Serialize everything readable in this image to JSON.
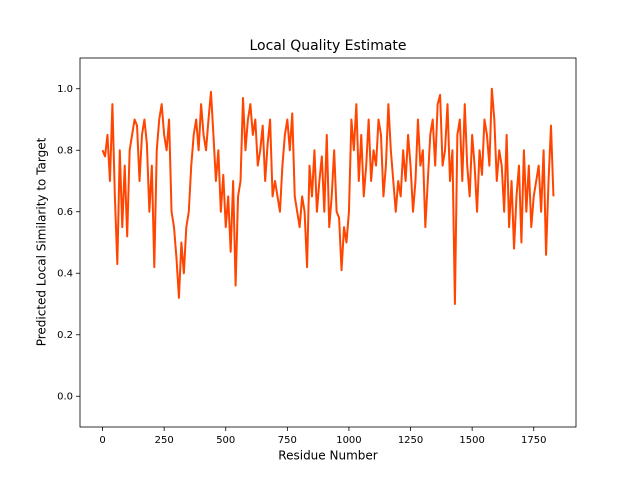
{
  "chart_data": {
    "type": "line",
    "title": "Local Quality Estimate",
    "xlabel": "Residue Number",
    "ylabel": "Predicted Local Similarity to Target",
    "color": "#ff4500",
    "xlim": [
      -91.5,
      1921.5
    ],
    "ylim": [
      -0.1,
      1.1
    ],
    "xticks": [
      0,
      250,
      500,
      750,
      1000,
      1250,
      1500,
      1750
    ],
    "yticks": [
      {
        "value": 0,
        "label": "0.0"
      },
      0.2,
      0.4,
      0.6,
      0.8,
      {
        "value": 1,
        "label": "1.0"
      }
    ],
    "x": [
      0,
      10,
      20,
      30,
      40,
      50,
      60,
      70,
      80,
      90,
      100,
      110,
      120,
      130,
      140,
      150,
      160,
      170,
      180,
      190,
      200,
      210,
      220,
      230,
      240,
      250,
      260,
      270,
      280,
      290,
      300,
      310,
      320,
      330,
      340,
      350,
      360,
      370,
      380,
      390,
      400,
      410,
      420,
      430,
      440,
      450,
      460,
      470,
      480,
      490,
      500,
      510,
      520,
      530,
      540,
      550,
      560,
      570,
      580,
      590,
      600,
      610,
      620,
      630,
      640,
      650,
      660,
      670,
      680,
      690,
      700,
      710,
      720,
      730,
      740,
      750,
      760,
      770,
      780,
      790,
      800,
      810,
      820,
      830,
      840,
      850,
      860,
      870,
      880,
      890,
      900,
      910,
      920,
      930,
      940,
      950,
      960,
      970,
      980,
      990,
      1000,
      1010,
      1020,
      1030,
      1040,
      1050,
      1060,
      1070,
      1080,
      1090,
      1100,
      1110,
      1120,
      1130,
      1140,
      1150,
      1160,
      1170,
      1180,
      1190,
      1200,
      1210,
      1220,
      1230,
      1240,
      1250,
      1260,
      1270,
      1280,
      1290,
      1300,
      1310,
      1320,
      1330,
      1340,
      1350,
      1360,
      1370,
      1380,
      1390,
      1400,
      1410,
      1420,
      1430,
      1440,
      1450,
      1460,
      1470,
      1480,
      1490,
      1500,
      1510,
      1520,
      1530,
      1540,
      1550,
      1560,
      1570,
      1580,
      1590,
      1600,
      1610,
      1620,
      1630,
      1640,
      1650,
      1660,
      1670,
      1680,
      1690,
      1700,
      1710,
      1720,
      1730,
      1740,
      1750,
      1760,
      1770,
      1780,
      1790,
      1800,
      1810,
      1820,
      1830
    ],
    "values": [
      0.8,
      0.78,
      0.85,
      0.7,
      0.95,
      0.65,
      0.43,
      0.8,
      0.55,
      0.75,
      0.52,
      0.8,
      0.85,
      0.9,
      0.88,
      0.7,
      0.85,
      0.9,
      0.82,
      0.6,
      0.75,
      0.42,
      0.8,
      0.9,
      0.95,
      0.85,
      0.8,
      0.9,
      0.6,
      0.55,
      0.45,
      0.32,
      0.5,
      0.4,
      0.55,
      0.6,
      0.75,
      0.85,
      0.9,
      0.8,
      0.95,
      0.85,
      0.8,
      0.9,
      0.99,
      0.85,
      0.7,
      0.8,
      0.6,
      0.72,
      0.55,
      0.65,
      0.47,
      0.7,
      0.36,
      0.65,
      0.7,
      0.97,
      0.8,
      0.9,
      0.95,
      0.85,
      0.9,
      0.75,
      0.8,
      0.88,
      0.7,
      0.82,
      0.9,
      0.65,
      0.7,
      0.65,
      0.6,
      0.75,
      0.85,
      0.9,
      0.8,
      0.92,
      0.65,
      0.6,
      0.55,
      0.65,
      0.6,
      0.42,
      0.75,
      0.65,
      0.8,
      0.6,
      0.7,
      0.78,
      0.6,
      0.85,
      0.55,
      0.65,
      0.8,
      0.6,
      0.58,
      0.41,
      0.55,
      0.5,
      0.6,
      0.9,
      0.8,
      0.95,
      0.7,
      0.85,
      0.65,
      0.75,
      0.9,
      0.7,
      0.8,
      0.75,
      0.9,
      0.85,
      0.65,
      0.75,
      0.95,
      0.8,
      0.7,
      0.6,
      0.7,
      0.65,
      0.8,
      0.7,
      0.85,
      0.75,
      0.6,
      0.7,
      0.9,
      0.75,
      0.8,
      0.55,
      0.7,
      0.85,
      0.9,
      0.75,
      0.95,
      0.98,
      0.75,
      0.8,
      0.95,
      0.7,
      0.8,
      0.3,
      0.85,
      0.9,
      0.7,
      0.95,
      0.75,
      0.65,
      0.85,
      0.75,
      0.6,
      0.8,
      0.72,
      0.9,
      0.85,
      0.75,
      1.0,
      0.9,
      0.7,
      0.8,
      0.75,
      0.6,
      0.85,
      0.55,
      0.7,
      0.48,
      0.65,
      0.75,
      0.5,
      0.8,
      0.6,
      0.75,
      0.55,
      0.65,
      0.7,
      0.75,
      0.6,
      0.8,
      0.46,
      0.7,
      0.88,
      0.65
    ]
  }
}
